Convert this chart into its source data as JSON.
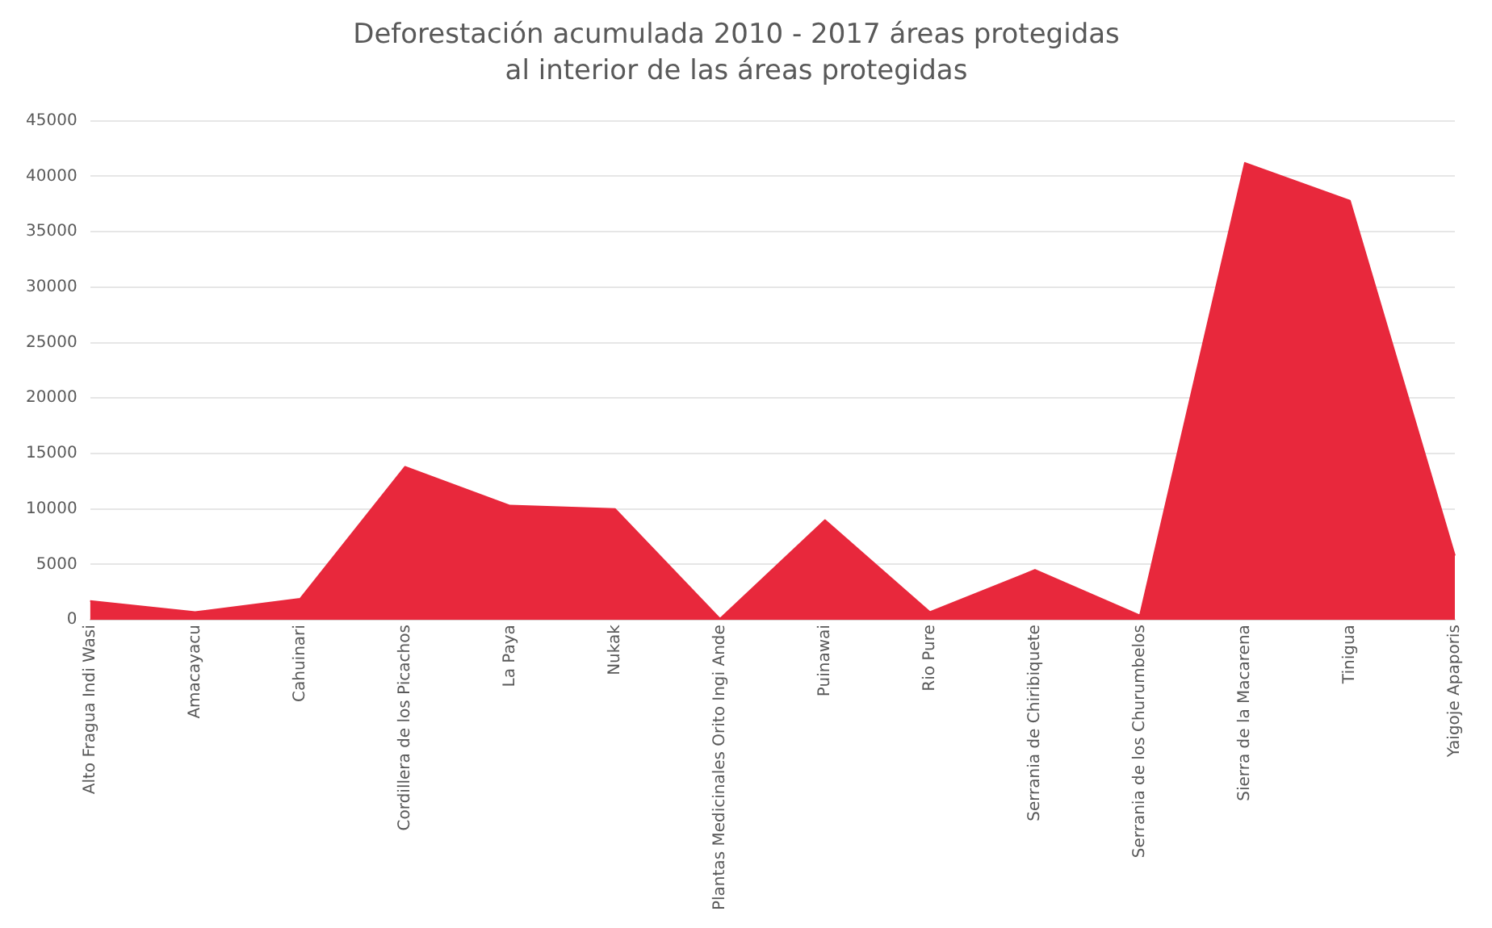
{
  "chart_data": {
    "type": "area",
    "title": "Deforestación acumulada 2010 - 2017 áreas protegidas",
    "subtitle": "al interior de las áreas protegidas",
    "categories": [
      "Alto Fragua Indi Wasi",
      "Amacayacu",
      "Cahuinari",
      "Cordillera de los Picachos",
      "La Paya",
      "Nukak",
      "Plantas Medicinales Orito Ingi Ande",
      "Puinawai",
      "Rio Pure",
      "Serrania de Chiribiquete",
      "Serrania de los Churumbelos",
      "Sierra de la Macarena",
      "Tinigua",
      "Yaigoje Apaporis"
    ],
    "series": [
      {
        "color": "#e8283c",
        "values": [
          1700,
          700,
          1900,
          13800,
          10300,
          10000,
          100,
          9000,
          700,
          4500,
          400,
          41200,
          37800,
          5800
        ]
      }
    ],
    "ylim": [
      0,
      45000
    ],
    "yticks": [
      0,
      5000,
      10000,
      15000,
      20000,
      25000,
      30000,
      35000,
      40000,
      45000
    ],
    "grid": "y",
    "legend": false
  }
}
